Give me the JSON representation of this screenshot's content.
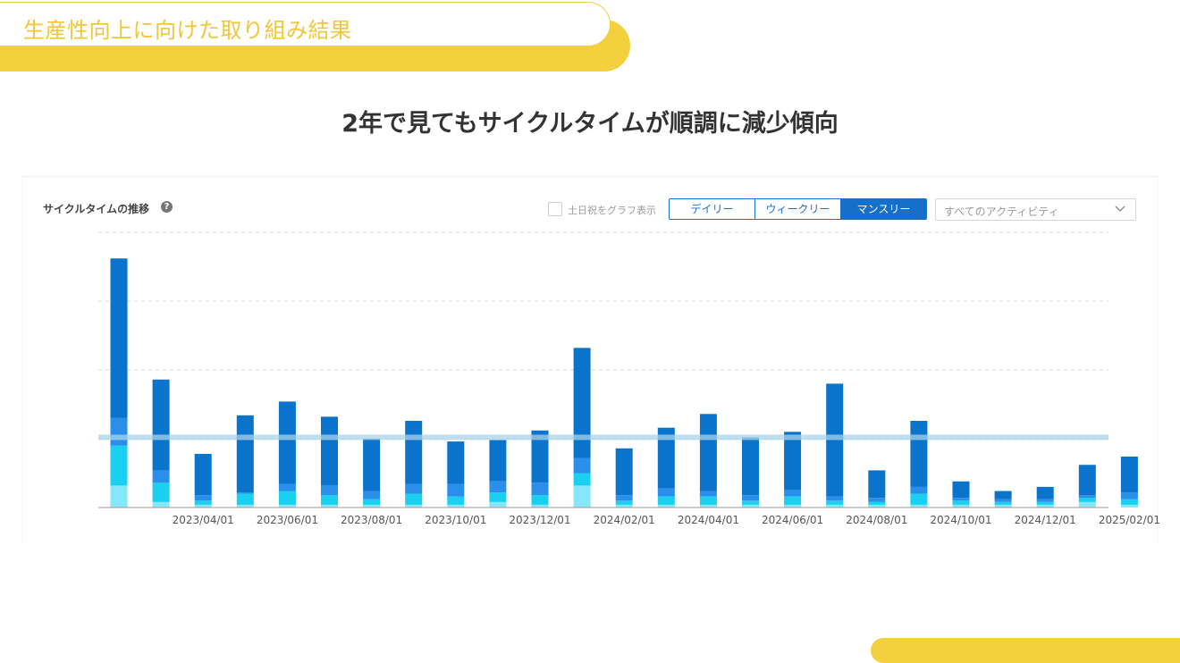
{
  "header": {
    "title": "生産性向上に向けた取り組み結果"
  },
  "main_title": "2年で見てもサイクルタイムが順調に減少傾向",
  "panel": {
    "title": "サイクルタイムの推移",
    "help_icon": "question-circle-icon",
    "weekend_label": "土日祝をグラフ表示",
    "view_buttons": [
      {
        "label": "デイリー",
        "active": false
      },
      {
        "label": "ウィークリー",
        "active": false
      },
      {
        "label": "マンスリー",
        "active": true
      }
    ],
    "activity_select": {
      "value": "すべてのアクティビティ",
      "icon": "chevron-down-icon"
    }
  },
  "colors": {
    "accent_yellow": "#f4d03f",
    "seg_dark": "#0a73cc",
    "seg_mid": "#2a8fea",
    "seg_cyan": "#1ad0f0",
    "seg_light": "#86e6fa",
    "reference_line": "#a9d3ea"
  },
  "chart_data": {
    "type": "bar",
    "stacked": true,
    "categories": [
      "2023-02",
      "2023-03",
      "2023-04",
      "2023-05",
      "2023-06",
      "2023-07",
      "2023-08",
      "2023-09",
      "2023-10",
      "2023-11",
      "2023-12",
      "2024-01",
      "2024-02",
      "2024-03",
      "2024-04",
      "2024-05",
      "2024-06",
      "2024-07",
      "2024-08",
      "2024-09",
      "2024-10",
      "2024-11",
      "2024-12",
      "2025-01",
      "2025-02"
    ],
    "x_tick_labels": [
      "2023/04/01",
      "2023/06/01",
      "2023/08/01",
      "2023/10/01",
      "2023/12/01",
      "2024/02/01",
      "2024/04/01",
      "2024/06/01",
      "2024/08/01",
      "2024/10/01",
      "2024/12/01",
      "2025/02/01"
    ],
    "x_tick_category_index": [
      2,
      4,
      6,
      8,
      10,
      12,
      14,
      16,
      18,
      20,
      22,
      24
    ],
    "ylim": [
      0,
      100
    ],
    "y_gridlines": [
      25,
      50,
      75,
      100
    ],
    "reference_value": 25.5,
    "grid": true,
    "legend": "none",
    "series": [
      {
        "values": [
          8,
          2,
          1,
          1,
          1,
          1,
          1,
          1,
          1,
          2,
          1,
          8,
          1,
          1,
          1,
          1,
          1,
          1,
          1,
          1,
          1,
          1,
          1,
          2,
          1
        ]
      },
      {
        "values": [
          14.5,
          7,
          1.5,
          4,
          5,
          3.5,
          2,
          4,
          3,
          3.5,
          3.5,
          4.5,
          1.5,
          3,
          3,
          1.5,
          3,
          1.5,
          1,
          4,
          1.5,
          1,
          1,
          1.5,
          2
        ]
      },
      {
        "values": [
          10,
          4.5,
          2,
          0.5,
          2.5,
          3.5,
          3,
          3.5,
          4.5,
          4,
          4.5,
          5.5,
          2,
          3,
          2,
          2,
          2.5,
          1.5,
          1.5,
          2.5,
          1,
          1,
          1,
          1,
          2.5
        ]
      },
      {
        "values": [
          58,
          33,
          15,
          28,
          30,
          25,
          19,
          23,
          15.5,
          15,
          19,
          40,
          17,
          22,
          28,
          21,
          21,
          41,
          10,
          24,
          6,
          3,
          4.5,
          11,
          13
        ]
      }
    ]
  }
}
